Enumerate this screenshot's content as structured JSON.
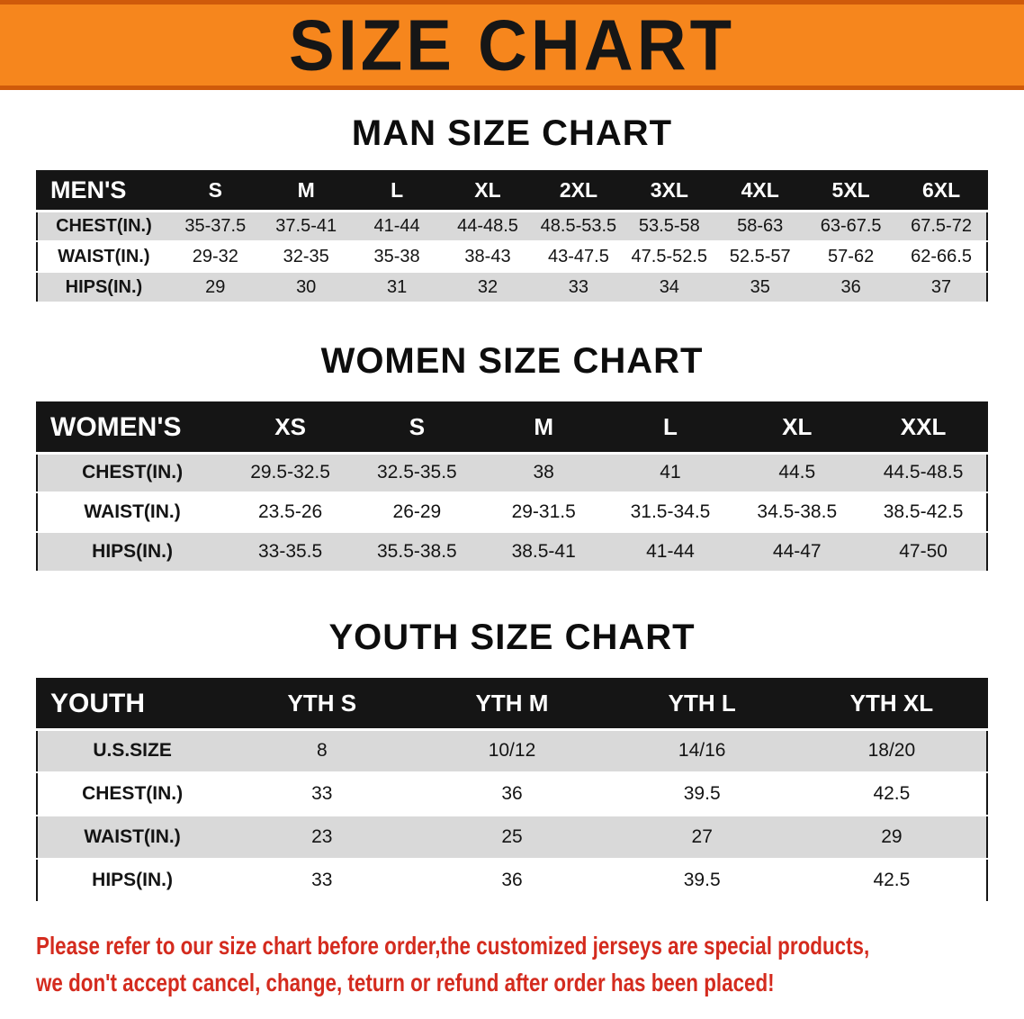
{
  "banner": {
    "title": "SIZE CHART"
  },
  "colors": {
    "banner_bg": "#f6861d",
    "banner_edge": "#cf5a0a",
    "table_header_bg": "#151515",
    "row_alt": "#d9d9d9",
    "footer_red": "#d42b1e"
  },
  "men": {
    "heading": "MAN SIZE CHART",
    "table": {
      "header": [
        "MEN'S",
        "S",
        "M",
        "L",
        "XL",
        "2XL",
        "3XL",
        "4XL",
        "5XL",
        "6XL"
      ],
      "rows": [
        [
          "CHEST(IN.)",
          "35-37.5",
          "37.5-41",
          "41-44",
          "44-48.5",
          "48.5-53.5",
          "53.5-58",
          "58-63",
          "63-67.5",
          "67.5-72"
        ],
        [
          "WAIST(IN.)",
          "29-32",
          "32-35",
          "35-38",
          "38-43",
          "43-47.5",
          "47.5-52.5",
          "52.5-57",
          "57-62",
          "62-66.5"
        ],
        [
          "HIPS(IN.)",
          "29",
          "30",
          "31",
          "32",
          "33",
          "34",
          "35",
          "36",
          "37"
        ]
      ]
    }
  },
  "women": {
    "heading": "WOMEN SIZE CHART",
    "table": {
      "header": [
        "WOMEN'S",
        "XS",
        "S",
        "M",
        "L",
        "XL",
        "XXL"
      ],
      "rows": [
        [
          "CHEST(IN.)",
          "29.5-32.5",
          "32.5-35.5",
          "38",
          "41",
          "44.5",
          "44.5-48.5"
        ],
        [
          "WAIST(IN.)",
          "23.5-26",
          "26-29",
          "29-31.5",
          "31.5-34.5",
          "34.5-38.5",
          "38.5-42.5"
        ],
        [
          "HIPS(IN.)",
          "33-35.5",
          "35.5-38.5",
          "38.5-41",
          "41-44",
          "44-47",
          "47-50"
        ]
      ]
    }
  },
  "youth": {
    "heading": "YOUTH SIZE CHART",
    "table": {
      "header": [
        "YOUTH",
        "YTH S",
        "YTH M",
        "YTH L",
        "YTH XL"
      ],
      "rows": [
        [
          "U.S.SIZE",
          "8",
          "10/12",
          "14/16",
          "18/20"
        ],
        [
          "CHEST(IN.)",
          "33",
          "36",
          "39.5",
          "42.5"
        ],
        [
          "WAIST(IN.)",
          "23",
          "25",
          "27",
          "29"
        ],
        [
          "HIPS(IN.)",
          "33",
          "36",
          "39.5",
          "42.5"
        ]
      ]
    }
  },
  "footer": {
    "line1": "Please refer to our size chart before order,the customized jerseys are special products,",
    "line2": "we don't accept cancel, change, teturn or refund after order has been placed!"
  }
}
